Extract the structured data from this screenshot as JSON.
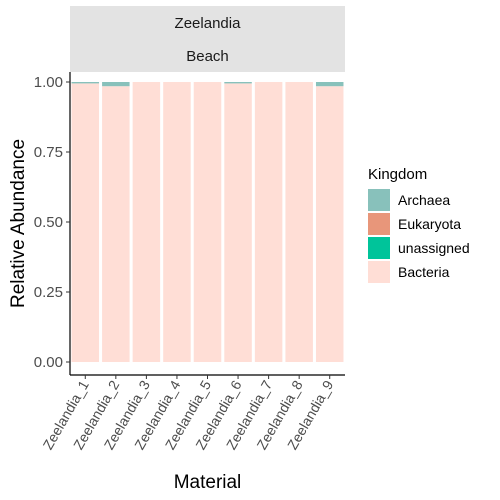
{
  "chart_data": {
    "type": "bar",
    "stacked": true,
    "facet_strips": [
      "Zeelandia",
      "Beach"
    ],
    "categories": [
      "Zeelandia_1",
      "Zeelandia_2",
      "Zeelandia_3",
      "Zeelandia_4",
      "Zeelandia_5",
      "Zeelandia_6",
      "Zeelandia_7",
      "Zeelandia_8",
      "Zeelandia_9"
    ],
    "series": [
      {
        "name": "Bacteria",
        "color": "#FFDED6",
        "values": [
          0.995,
          0.985,
          1.0,
          1.0,
          1.0,
          0.995,
          1.0,
          1.0,
          0.985
        ]
      },
      {
        "name": "unassigned",
        "color": "#00C49A",
        "values": [
          0,
          0,
          0,
          0,
          0,
          0,
          0,
          0,
          0
        ]
      },
      {
        "name": "Eukaryota",
        "color": "#E8967A",
        "values": [
          0,
          0,
          0,
          0,
          0,
          0,
          0,
          0,
          0
        ]
      },
      {
        "name": "Archaea",
        "color": "#88C1BB",
        "values": [
          0.005,
          0.015,
          0,
          0,
          0,
          0.005,
          0,
          0,
          0.015
        ]
      }
    ],
    "xlabel": "Material",
    "ylabel": "Relative Abundance",
    "ylim": [
      0,
      1
    ],
    "yticks": [
      "0.00",
      "0.25",
      "0.50",
      "0.75",
      "1.00"
    ],
    "legend": {
      "title": "Kingdom",
      "position": "right",
      "entries": [
        {
          "label": "Archaea",
          "color": "#88C1BB"
        },
        {
          "label": "Eukaryota",
          "color": "#E8967A"
        },
        {
          "label": "unassigned",
          "color": "#00C49A"
        },
        {
          "label": "Bacteria",
          "color": "#FFDED6"
        }
      ]
    },
    "strip_color": "#E3E3E3",
    "grid": false
  }
}
